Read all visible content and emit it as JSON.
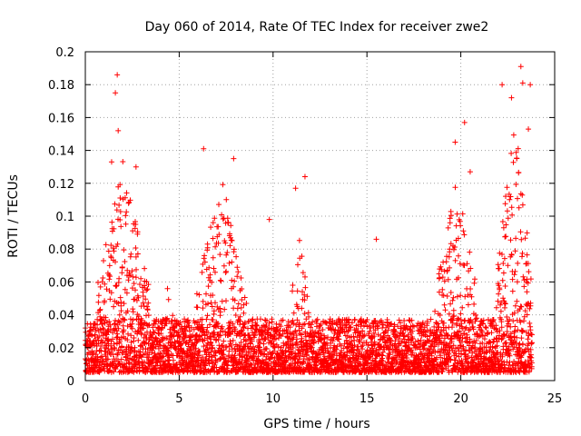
{
  "chart_data": {
    "type": "scatter",
    "title": "Day 060 of 2014, Rate Of TEC Index for receiver zwe2",
    "xlabel": "GPS time / hours",
    "ylabel": "ROTI / TECUs",
    "xlim": [
      0,
      25
    ],
    "ylim": [
      0,
      0.2
    ],
    "x_ticks": [
      0,
      5,
      10,
      15,
      20,
      25
    ],
    "x_tick_labels": [
      "0",
      "5",
      "10",
      "15",
      "20",
      "25"
    ],
    "y_ticks": [
      0,
      0.02,
      0.04,
      0.06,
      0.08,
      0.1,
      0.12,
      0.14,
      0.16,
      0.18,
      0.2
    ],
    "y_tick_labels": [
      "0",
      "0.02",
      "0.04",
      "0.06",
      "0.08",
      "0.1",
      "0.12",
      "0.14",
      "0.16",
      "0.18",
      "0.2"
    ],
    "grid": true,
    "marker": "+",
    "color": "#ff0000",
    "x_extent_hours": [
      0,
      23.8
    ],
    "background_level": {
      "min": 0.005,
      "max": 0.03
    },
    "notable_points": [
      {
        "x": 1.7,
        "y": 0.186
      },
      {
        "x": 1.6,
        "y": 0.175
      },
      {
        "x": 1.75,
        "y": 0.152
      },
      {
        "x": 1.4,
        "y": 0.133
      },
      {
        "x": 2.7,
        "y": 0.13
      },
      {
        "x": 6.3,
        "y": 0.141
      },
      {
        "x": 7.9,
        "y": 0.135
      },
      {
        "x": 9.8,
        "y": 0.098
      },
      {
        "x": 11.2,
        "y": 0.117
      },
      {
        "x": 11.7,
        "y": 0.124
      },
      {
        "x": 15.5,
        "y": 0.086
      },
      {
        "x": 19.7,
        "y": 0.145
      },
      {
        "x": 20.2,
        "y": 0.157
      },
      {
        "x": 20.5,
        "y": 0.127
      },
      {
        "x": 22.2,
        "y": 0.18
      },
      {
        "x": 22.7,
        "y": 0.172
      },
      {
        "x": 23.2,
        "y": 0.191
      },
      {
        "x": 23.3,
        "y": 0.181
      },
      {
        "x": 23.7,
        "y": 0.18
      },
      {
        "x": 23.6,
        "y": 0.153
      }
    ],
    "activity_regions": [
      {
        "from": 0.6,
        "to": 3.4,
        "peak": 0.13,
        "density": 0.95
      },
      {
        "from": 4.2,
        "to": 4.8,
        "peak": 0.07,
        "density": 0.5
      },
      {
        "from": 5.9,
        "to": 8.6,
        "peak": 0.12,
        "density": 0.9
      },
      {
        "from": 10.8,
        "to": 11.9,
        "peak": 0.1,
        "density": 0.6
      },
      {
        "from": 18.6,
        "to": 20.9,
        "peak": 0.12,
        "density": 0.8
      },
      {
        "from": 21.9,
        "to": 23.8,
        "peak": 0.16,
        "density": 0.95
      }
    ]
  }
}
